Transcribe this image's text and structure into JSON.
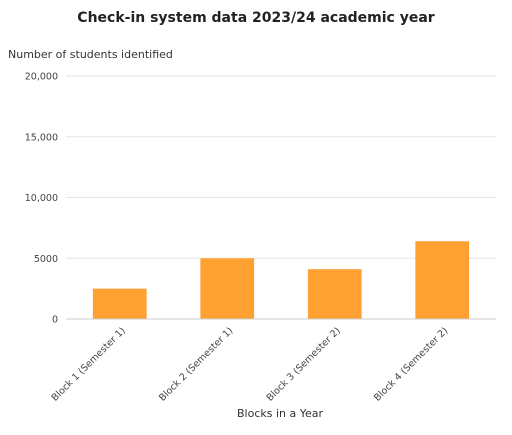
{
  "chart_data": {
    "type": "bar",
    "title": "Check-in system data 2023/24 academic year",
    "ylabel": "Number of students identified",
    "xlabel": "Blocks in a Year",
    "categories": [
      "Block 1 (Semester 1)",
      "Block 2 (Semester 1)",
      "Block 3 (Semester 2)",
      "Block 4 (Semester 2)"
    ],
    "values": [
      2500,
      5000,
      4100,
      6400
    ],
    "ylim": [
      0,
      20000
    ],
    "yticks": [
      0,
      5000,
      10000,
      15000,
      20000
    ],
    "ytick_labels": [
      "0",
      "5000",
      "10,000",
      "15,000",
      "20,000"
    ],
    "bar_color": "#FFA033",
    "grid": true,
    "legend": "none"
  }
}
